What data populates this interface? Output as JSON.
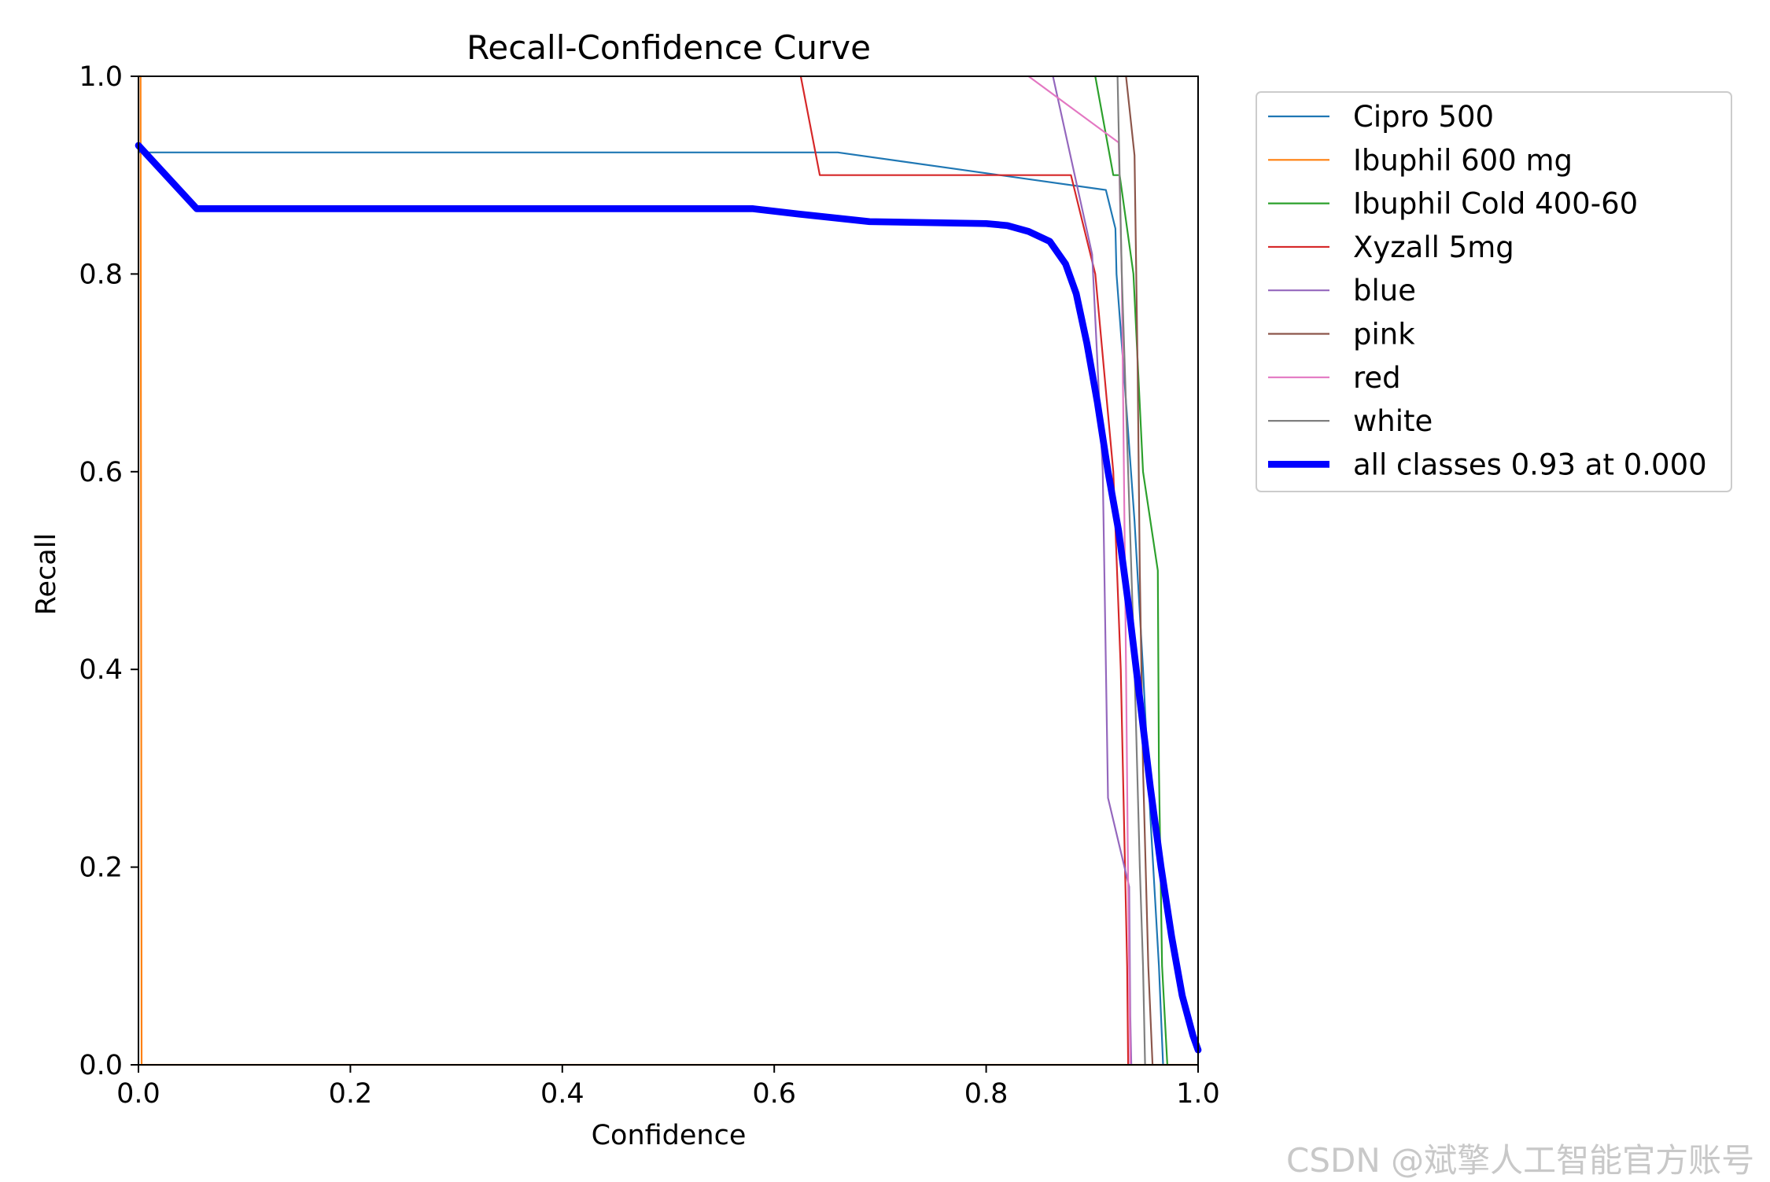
{
  "watermark": "CSDN @斌擎人工智能官方账号",
  "chart_data": {
    "type": "line",
    "title": "Recall-Confidence Curve",
    "xlabel": "Confidence",
    "ylabel": "Recall",
    "xlim": [
      0,
      1
    ],
    "ylim": [
      0,
      1
    ],
    "xticks": [
      "0.0",
      "0.2",
      "0.4",
      "0.6",
      "0.8",
      "1.0"
    ],
    "yticks": [
      "0.0",
      "0.2",
      "0.4",
      "0.6",
      "0.8",
      "1.0"
    ],
    "grid": false,
    "legend_position": "outside-right-top",
    "series": [
      {
        "name": "Cipro 500",
        "color": "#1f77b4",
        "width": 1.5,
        "points": [
          [
            0,
            0.923
          ],
          [
            0.66,
            0.923
          ],
          [
            0.913,
            0.885
          ],
          [
            0.922,
            0.846
          ],
          [
            0.923,
            0.8
          ],
          [
            0.93,
            0.7
          ],
          [
            0.94,
            0.55
          ],
          [
            0.948,
            0.4
          ],
          [
            0.955,
            0.25
          ],
          [
            0.963,
            0.1
          ],
          [
            0.967,
            0
          ]
        ]
      },
      {
        "name": "Ibuphil 600 mg",
        "color": "#ff7f0e",
        "width": 1.5,
        "points": [
          [
            0,
            1.0
          ],
          [
            0.002,
            1.0
          ],
          [
            0.003,
            0
          ],
          [
            1.0,
            0
          ]
        ]
      },
      {
        "name": "Ibuphil Cold 400-60",
        "color": "#2ca02c",
        "width": 1.5,
        "points": [
          [
            0.903,
            1.0
          ],
          [
            0.92,
            0.9
          ],
          [
            0.926,
            0.9
          ],
          [
            0.939,
            0.8
          ],
          [
            0.948,
            0.6
          ],
          [
            0.962,
            0.5
          ],
          [
            0.963,
            0.3
          ],
          [
            0.966,
            0.1
          ],
          [
            0.971,
            0
          ]
        ]
      },
      {
        "name": "Xyzall 5mg",
        "color": "#d62728",
        "width": 1.5,
        "points": [
          [
            0.625,
            1.0
          ],
          [
            0.643,
            0.9
          ],
          [
            0.88,
            0.9
          ],
          [
            0.903,
            0.8
          ],
          [
            0.92,
            0.6
          ],
          [
            0.927,
            0.4
          ],
          [
            0.931,
            0.2
          ],
          [
            0.933,
            0.1
          ],
          [
            0.934,
            0
          ]
        ]
      },
      {
        "name": "blue",
        "color": "#9467bd",
        "width": 1.5,
        "points": [
          [
            0.863,
            1.0
          ],
          [
            0.9,
            0.82
          ],
          [
            0.91,
            0.6
          ],
          [
            0.915,
            0.27
          ],
          [
            0.935,
            0.18
          ],
          [
            0.936,
            0.05
          ],
          [
            0.937,
            0
          ]
        ]
      },
      {
        "name": "pink",
        "color": "#8c564b",
        "width": 1.5,
        "points": [
          [
            0.932,
            1.0
          ],
          [
            0.94,
            0.92
          ],
          [
            0.943,
            0.7
          ],
          [
            0.945,
            0.5
          ],
          [
            0.948,
            0.3
          ],
          [
            0.953,
            0.1
          ],
          [
            0.957,
            0
          ]
        ]
      },
      {
        "name": "red",
        "color": "#e377c2",
        "width": 1.5,
        "points": [
          [
            0.84,
            1.0
          ],
          [
            0.925,
            0.933
          ],
          [
            0.928,
            0.8
          ],
          [
            0.93,
            0.6
          ],
          [
            0.932,
            0.4
          ],
          [
            0.934,
            0.18
          ],
          [
            0.936,
            0
          ]
        ]
      },
      {
        "name": "white",
        "color": "#7f7f7f",
        "width": 1.5,
        "points": [
          [
            0.924,
            1.0
          ],
          [
            0.928,
            0.8
          ],
          [
            0.934,
            0.6
          ],
          [
            0.94,
            0.4
          ],
          [
            0.945,
            0.2
          ],
          [
            0.948,
            0.1
          ],
          [
            0.95,
            0
          ]
        ]
      },
      {
        "name": "all classes 0.93 at 0.000",
        "color": "#0000ff",
        "width": 6,
        "points": [
          [
            0,
            0.93
          ],
          [
            0.055,
            0.866
          ],
          [
            0.58,
            0.866
          ],
          [
            0.62,
            0.861
          ],
          [
            0.69,
            0.853
          ],
          [
            0.8,
            0.851
          ],
          [
            0.82,
            0.849
          ],
          [
            0.84,
            0.843
          ],
          [
            0.86,
            0.833
          ],
          [
            0.875,
            0.81
          ],
          [
            0.885,
            0.78
          ],
          [
            0.895,
            0.73
          ],
          [
            0.905,
            0.67
          ],
          [
            0.915,
            0.6
          ],
          [
            0.925,
            0.54
          ],
          [
            0.935,
            0.46
          ],
          [
            0.945,
            0.37
          ],
          [
            0.955,
            0.28
          ],
          [
            0.965,
            0.2
          ],
          [
            0.975,
            0.13
          ],
          [
            0.985,
            0.07
          ],
          [
            0.995,
            0.03
          ],
          [
            1.0,
            0.015
          ]
        ]
      }
    ]
  }
}
